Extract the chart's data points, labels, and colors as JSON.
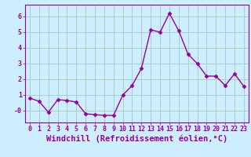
{
  "x": [
    0,
    1,
    2,
    3,
    4,
    5,
    6,
    7,
    8,
    9,
    10,
    11,
    12,
    13,
    14,
    15,
    16,
    17,
    18,
    19,
    20,
    21,
    22,
    23
  ],
  "y": [
    0.8,
    0.6,
    -0.1,
    0.7,
    0.65,
    0.55,
    -0.2,
    -0.25,
    -0.3,
    -0.3,
    1.0,
    1.6,
    2.7,
    5.15,
    5.0,
    6.2,
    5.1,
    3.6,
    3.0,
    2.2,
    2.2,
    1.6,
    2.35,
    1.55
  ],
  "line_color": "#990099",
  "marker": "D",
  "marker_size": 2.5,
  "xlabel": "Windchill (Refroidissement éolien,°C)",
  "xlabel_fontsize": 7,
  "xlim": [
    -0.5,
    23.5
  ],
  "ylim": [
    -0.75,
    6.75
  ],
  "yticks": [
    0,
    1,
    2,
    3,
    4,
    5,
    6
  ],
  "ytick_labels": [
    "-0",
    "1",
    "2",
    "3",
    "4",
    "5",
    "6"
  ],
  "xtick_labels": [
    "0",
    "1",
    "2",
    "3",
    "4",
    "5",
    "6",
    "7",
    "8",
    "9",
    "10",
    "11",
    "12",
    "13",
    "14",
    "15",
    "16",
    "17",
    "18",
    "19",
    "20",
    "21",
    "22",
    "23"
  ],
  "grid_color": "#aacccc",
  "bg_color": "#cceeff",
  "line_width": 1.0,
  "tick_fontsize": 6.0,
  "label_fontsize": 7.5
}
